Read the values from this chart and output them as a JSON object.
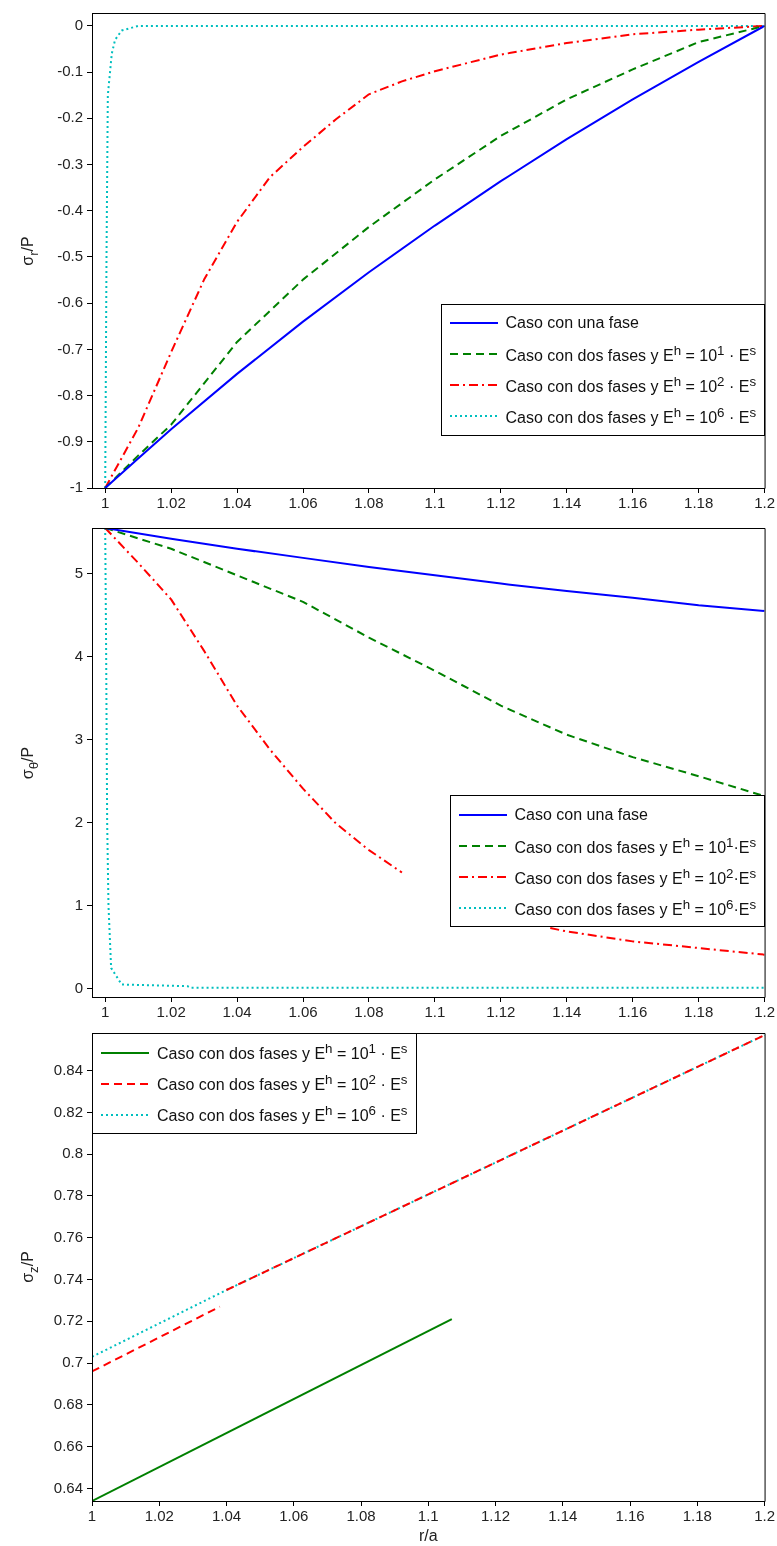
{
  "chart_data": [
    {
      "type": "line",
      "ylabel": "σ$_{r}$/P",
      "xlim": [
        0.996,
        1.2
      ],
      "xticks": [
        1,
        1.02,
        1.04,
        1.06,
        1.08,
        1.1,
        1.12,
        1.14,
        1.16,
        1.18,
        1.2
      ],
      "ylim": [
        -1,
        0.028
      ],
      "yticks": [
        -1,
        -0.9,
        -0.8,
        -0.7,
        -0.6,
        -0.5,
        -0.4,
        -0.3,
        -0.2,
        -0.1,
        0
      ],
      "legend": "bottom right",
      "marker": "none",
      "series": [
        {
          "name": "Caso con una fase",
          "color": "#0000ff",
          "line_style": "solid",
          "x": [
            1,
            1.01,
            1.02,
            1.04,
            1.06,
            1.08,
            1.1,
            1.12,
            1.14,
            1.16,
            1.18,
            1.2
          ],
          "values": [
            -1,
            -0.936,
            -0.873,
            -0.753,
            -0.64,
            -0.533,
            -0.432,
            -0.336,
            -0.245,
            -0.159,
            -0.078,
            0
          ]
        },
        {
          "name": "Caso con dos fases y E$^{h}$ = 10$^{1}$ · E$^{s}$",
          "color": "#008000",
          "line_style": "dashed",
          "x": [
            1,
            1.01,
            1.02,
            1.04,
            1.06,
            1.08,
            1.1,
            1.12,
            1.14,
            1.16,
            1.18,
            1.2
          ],
          "values": [
            -1,
            -0.93,
            -0.863,
            -0.684,
            -0.549,
            -0.435,
            -0.332,
            -0.238,
            -0.159,
            -0.094,
            -0.035,
            0
          ]
        },
        {
          "name": "Caso con dos fases y E$^{h}$ = 10$^{2}$ · E$^{s}$",
          "color": "#ff0000",
          "line_style": "dashdot",
          "x": [
            1,
            1.01,
            1.02,
            1.03,
            1.04,
            1.05,
            1.06,
            1.07,
            1.08,
            1.09,
            1.1,
            1.12,
            1.14,
            1.16,
            1.18,
            1.2
          ],
          "values": [
            -1,
            -0.87,
            -0.706,
            -0.549,
            -0.424,
            -0.327,
            -0.262,
            -0.202,
            -0.148,
            -0.12,
            -0.098,
            -0.062,
            -0.037,
            -0.018,
            -0.008,
            0
          ]
        },
        {
          "name": "Caso con dos fases y E$^{h}$ = 10$^{6}$ · E$^{s}$",
          "color": "#00bfbf",
          "line_style": "dotted",
          "x": [
            1,
            1.0004,
            1.0008,
            1.002,
            1.003,
            1.005,
            1.01,
            1.2
          ],
          "values": [
            -1,
            -0.5,
            -0.15,
            -0.06,
            -0.03,
            -0.01,
            0,
            0
          ]
        }
      ]
    },
    {
      "type": "line",
      "ylabel": "σ$_{θ}$/P",
      "xlim": [
        0.996,
        1.2
      ],
      "xticks": [
        1,
        1.02,
        1.04,
        1.06,
        1.08,
        1.1,
        1.12,
        1.14,
        1.16,
        1.18,
        1.2
      ],
      "ylim": [
        -0.1,
        5.55
      ],
      "yticks": [
        0,
        1,
        2,
        3,
        4,
        5
      ],
      "legend": "right",
      "marker": "none",
      "series": [
        {
          "name": "Caso con una fase",
          "color": "#0000ff",
          "line_style": "solid",
          "x": [
            1,
            1.02,
            1.04,
            1.06,
            1.08,
            1.1,
            1.12,
            1.14,
            1.16,
            1.18,
            1.2
          ],
          "values": [
            5.55,
            5.42,
            5.3,
            5.19,
            5.08,
            4.98,
            4.88,
            4.79,
            4.71,
            4.62,
            4.55
          ]
        },
        {
          "name": "Caso con dos fases y E$^{h}$ = 10$^{1}$·E$^{s}$",
          "color": "#008000",
          "line_style": "dashed",
          "x": [
            1,
            1.02,
            1.04,
            1.06,
            1.08,
            1.1,
            1.12,
            1.14,
            1.16,
            1.18,
            1.2
          ],
          "values": [
            5.55,
            5.3,
            4.98,
            4.66,
            4.23,
            3.83,
            3.41,
            3.06,
            2.79,
            2.56,
            2.32
          ]
        },
        {
          "name": "Caso con dos fases y E$^{h}$ = 10$^{2}$·E$^{s}$",
          "color": "#ff0000",
          "line_style": "dashdot",
          "x": [
            1,
            1.01,
            1.02,
            1.03,
            1.04,
            1.05,
            1.06,
            1.07,
            1.08,
            1.09,
            1.1,
            1.12,
            1.135,
            1.14,
            1.16,
            1.18,
            1.2
          ],
          "values": [
            5.55,
            5.13,
            4.69,
            4.07,
            3.41,
            2.88,
            2.41,
            1.99,
            1.67,
            1.4,
            null,
            null,
            0.73,
            0.69,
            0.57,
            0.49,
            0.41
          ]
        },
        {
          "name": "Caso con dos fases y E$^{h}$ = 10$^{6}$·E$^{s}$",
          "color": "#00bfbf",
          "line_style": "dotted",
          "x": [
            1,
            1.0003,
            1.0006,
            1.001,
            1.0018,
            1.005,
            1.025,
            1.026,
            1.2
          ],
          "values": [
            5.55,
            4,
            2,
            1,
            0.25,
            0.05,
            0.03,
            0.01,
            0.01
          ]
        }
      ]
    },
    {
      "type": "line",
      "ylabel": "σ$_{z}$/P",
      "xlabel": "r/a",
      "xlim": [
        1,
        1.2
      ],
      "xticks": [
        1,
        1.02,
        1.04,
        1.06,
        1.08,
        1.1,
        1.12,
        1.14,
        1.16,
        1.18,
        1.2
      ],
      "ylim": [
        0.634,
        0.858
      ],
      "yticks": [
        0.64,
        0.66,
        0.68,
        0.7,
        0.72,
        0.74,
        0.76,
        0.78,
        0.8,
        0.82,
        0.84
      ],
      "legend": "top left",
      "marker": "none",
      "series": [
        {
          "name": "Caso con dos fases y E$^{h}$ = 10$^{1}$ · E$^{s}$",
          "color": "#008000",
          "line_style": "solid",
          "x": [
            1,
            1.107
          ],
          "values": [
            0.634,
            0.721
          ]
        },
        {
          "name": "Caso con dos fases y E$^{h}$ = 10$^{2}$ · E$^{s}$",
          "color": "#ff0000",
          "line_style": "dashed",
          "x": [
            1,
            1.038,
            1.039,
            1.04,
            1.2
          ],
          "values": [
            0.696,
            0.727,
            null,
            0.735,
            0.857
          ]
        },
        {
          "name": "Caso con dos fases y E$^{h}$ = 10$^{6}$ · E$^{s}$",
          "color": "#00bfbf",
          "line_style": "dotted",
          "x": [
            1,
            1.04,
            1.2
          ],
          "values": [
            0.703,
            0.735,
            0.857
          ]
        }
      ]
    }
  ]
}
